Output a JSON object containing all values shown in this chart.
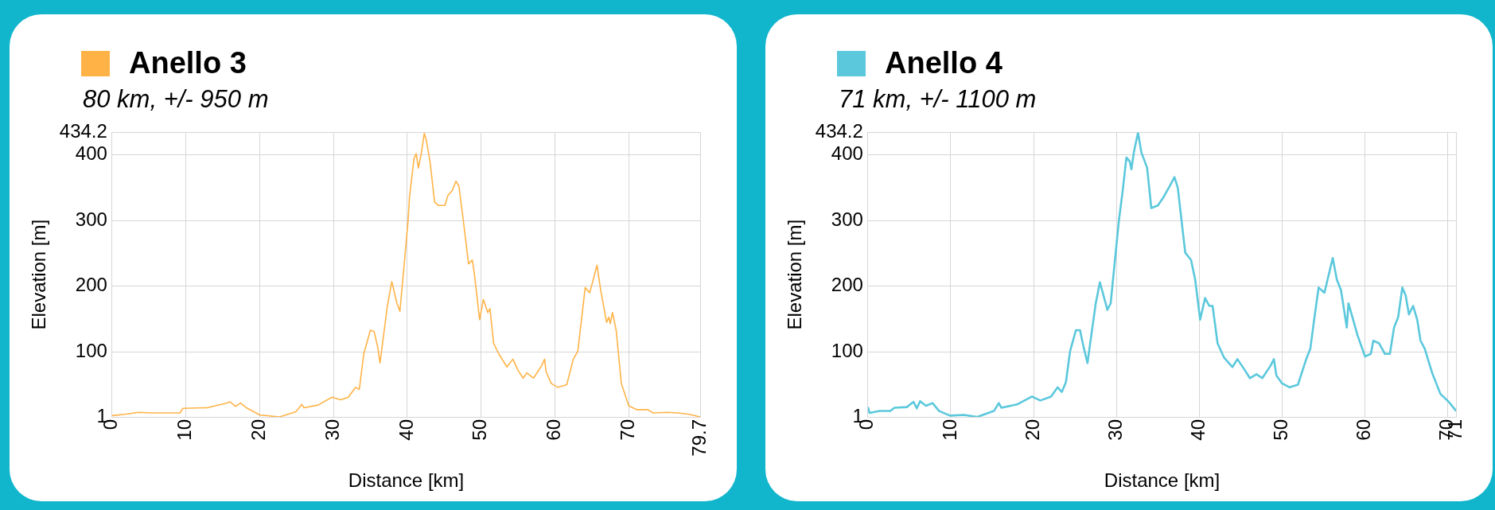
{
  "chart_data": [
    {
      "type": "line",
      "subtitle": "80 km, +/- 950 m",
      "xlabel": "Distance [km]",
      "ylabel": "Elevation [m]",
      "legend": "top left",
      "grid": true,
      "marker": "none",
      "line_style": "solid",
      "xlim": [
        0,
        79.7
      ],
      "xticks": [
        0,
        10,
        20,
        30,
        40,
        50,
        60,
        70,
        79.7
      ],
      "ylim": [
        1,
        434.2
      ],
      "yticks": [
        1,
        100,
        200,
        300,
        400,
        434.2
      ],
      "series": [
        {
          "name": "Anello 3",
          "color": "#ffb347",
          "x": [
            0,
            1.7,
            3.6,
            5.4,
            9.2,
            9.6,
            12.9,
            15.5,
            16,
            16.7,
            17.4,
            18.2,
            20,
            22.7,
            24.9,
            25.7,
            26,
            27.9,
            29.8,
            31,
            32,
            33,
            33.5,
            34.1,
            35,
            35.5,
            36,
            36.3,
            37.3,
            37.9,
            38.6,
            39,
            39.6,
            40.1,
            40.3,
            40.9,
            41.2,
            41.5,
            41.9,
            42.3,
            42.6,
            43.1,
            43.7,
            44.2,
            45.1,
            45.5,
            46.1,
            46.6,
            47,
            47.6,
            48.3,
            48.8,
            49.1,
            49.8,
            50.3,
            50.9,
            51.2,
            51.7,
            52.4,
            53.5,
            54.3,
            55,
            55.7,
            56.2,
            57.1,
            58.2,
            58.6,
            58.8,
            59.5,
            60.4,
            61.6,
            62.5,
            63.1,
            63.6,
            64.1,
            64.7,
            65.1,
            65.7,
            66.2,
            67,
            67.3,
            67.5,
            67.8,
            68.3,
            69,
            70,
            71.1,
            72.6,
            73.3,
            75.2,
            76.7,
            78.2,
            79.7
          ],
          "values": [
            3,
            5,
            8,
            7,
            7,
            14,
            15,
            22,
            24,
            17,
            22,
            15,
            4,
            1,
            9,
            20,
            15,
            19,
            31,
            27,
            31,
            46,
            43,
            97,
            133,
            131,
            107,
            83,
            170,
            207,
            174,
            162,
            236,
            299,
            336,
            394,
            402,
            380,
            402,
            433,
            421,
            388,
            328,
            323,
            323,
            338,
            346,
            360,
            352,
            299,
            234,
            240,
            218,
            149,
            180,
            160,
            166,
            113,
            97,
            77,
            89,
            72,
            60,
            68,
            60,
            79,
            89,
            70,
            52,
            46,
            50,
            89,
            101,
            149,
            198,
            190,
            206,
            232,
            194,
            145,
            153,
            143,
            160,
            133,
            52,
            18,
            12,
            12,
            7,
            8,
            7,
            5,
            1
          ]
        }
      ]
    },
    {
      "type": "line",
      "subtitle": "71 km, +/- 1100 m",
      "xlabel": "Distance [km]",
      "ylabel": "Elevation [m]",
      "legend": "top left",
      "grid": true,
      "marker": "none",
      "line_style": "solid",
      "xlim": [
        0,
        71
      ],
      "xticks": [
        0,
        10,
        20,
        30,
        40,
        50,
        60,
        70,
        71
      ],
      "ylim": [
        1,
        434.2
      ],
      "yticks": [
        1,
        100,
        200,
        300,
        400,
        434.2
      ],
      "series": [
        {
          "name": "Anello 4",
          "color": "#5bc8dc",
          "x": [
            0,
            0.2,
            1.4,
            2.7,
            3.2,
            4.7,
            5.5,
            5.9,
            6.3,
            7,
            7.8,
            8.6,
            9.9,
            11.6,
            13.2,
            15.2,
            15.8,
            16.1,
            18,
            19.8,
            20.8,
            22.1,
            22.9,
            23.4,
            23.9,
            24.4,
            25.1,
            25.6,
            26,
            26.5,
            27,
            27.5,
            28,
            28.9,
            29.3,
            29.8,
            30.3,
            30.7,
            31.2,
            31.6,
            31.8,
            32.1,
            32.6,
            33,
            33.7,
            34.2,
            35,
            35.7,
            36.4,
            37,
            37.4,
            38.3,
            39,
            39.5,
            40.1,
            40.7,
            41.2,
            41.6,
            42.2,
            43,
            44,
            44.6,
            45.5,
            46.1,
            46.9,
            47.6,
            48.6,
            49,
            49.3,
            50,
            50.9,
            51.9,
            52.9,
            53.4,
            53.9,
            54.4,
            55.1,
            56.1,
            56.6,
            57.1,
            57.8,
            58,
            59.1,
            60,
            60.7,
            61,
            61.7,
            62.4,
            63,
            63.5,
            64,
            64.5,
            64.9,
            65.3,
            65.8,
            66.3,
            66.7,
            67.2,
            68.1,
            69.1,
            70.1,
            71
          ],
          "values": [
            16,
            7,
            10,
            10,
            15,
            16,
            24,
            14,
            25,
            18,
            22,
            10,
            3,
            4,
            1,
            10,
            22,
            15,
            20,
            32,
            26,
            32,
            46,
            39,
            54,
            101,
            133,
            133,
            109,
            83,
            129,
            174,
            206,
            164,
            174,
            238,
            301,
            340,
            396,
            390,
            378,
            404,
            434,
            404,
            380,
            319,
            323,
            336,
            352,
            366,
            350,
            251,
            240,
            210,
            149,
            182,
            170,
            170,
            113,
            91,
            77,
            89,
            72,
            60,
            66,
            60,
            79,
            89,
            64,
            52,
            46,
            50,
            89,
            105,
            153,
            198,
            190,
            243,
            210,
            194,
            137,
            174,
            125,
            93,
            97,
            117,
            113,
            97,
            97,
            137,
            153,
            198,
            186,
            157,
            170,
            149,
            117,
            105,
            68,
            36,
            24,
            10
          ]
        }
      ]
    }
  ]
}
